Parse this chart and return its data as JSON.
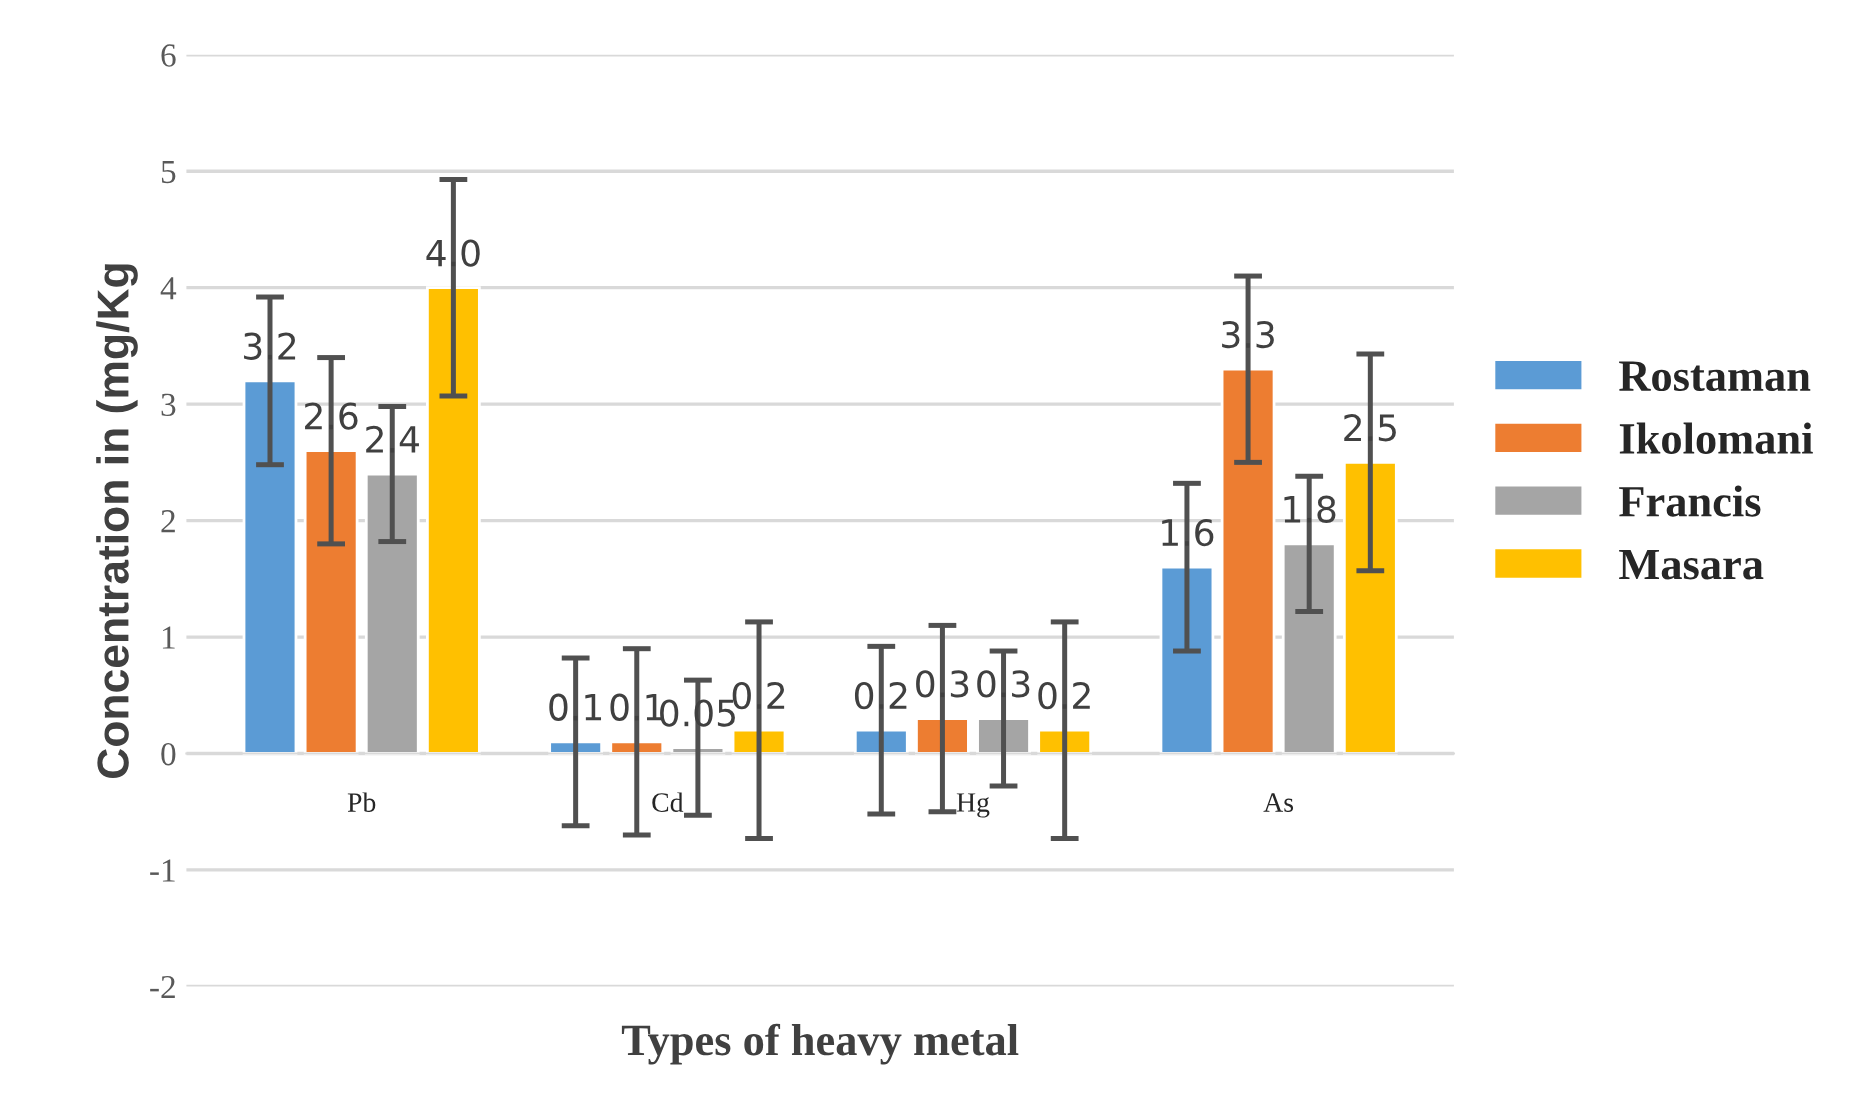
{
  "chart_data": {
    "type": "bar",
    "xlabel": "Types of heavy metal",
    "ylabel": "Concentration in (mg/Kg",
    "categories": [
      "Pb",
      "Cd",
      "Hg",
      "As"
    ],
    "series": [
      {
        "name": "Rostaman",
        "color": "#5b9bd5",
        "values": [
          3.2,
          0.1,
          0.2,
          1.6
        ],
        "errors": [
          0.72,
          0.72,
          0.72,
          0.72
        ],
        "value_labels": [
          "3.2",
          "0.1",
          "0.2",
          "1.6"
        ]
      },
      {
        "name": "Ikolomani",
        "color": "#ed7d31",
        "values": [
          2.6,
          0.1,
          0.3,
          3.3
        ],
        "errors": [
          0.8,
          0.8,
          0.8,
          0.8
        ],
        "value_labels": [
          "2.6",
          "0.1",
          "0.3",
          "3.3"
        ]
      },
      {
        "name": "Francis",
        "color": "#a5a5a5",
        "values": [
          2.4,
          0.05,
          0.3,
          1.8
        ],
        "errors": [
          0.58,
          0.58,
          0.58,
          0.58
        ],
        "value_labels": [
          "2.4",
          "0.05",
          "0.3",
          "1.8"
        ]
      },
      {
        "name": "Masara",
        "color": "#ffc000",
        "values": [
          4.0,
          0.2,
          0.2,
          2.5
        ],
        "errors": [
          0.93,
          0.93,
          0.93,
          0.93
        ],
        "value_labels": [
          "4.0",
          "0.2",
          "0.2",
          "2.5"
        ]
      }
    ],
    "ylim": [
      -2,
      6
    ],
    "yticks": [
      -2,
      -1,
      0,
      1,
      2,
      3,
      4,
      5,
      6
    ],
    "grid": "y",
    "legend": "right"
  }
}
